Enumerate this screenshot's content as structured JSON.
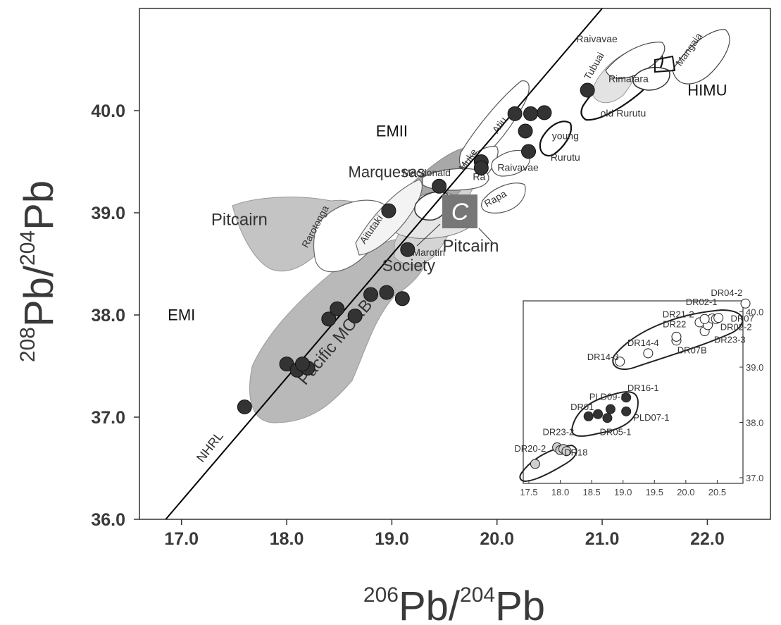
{
  "chart_data": [
    {
      "type": "scatter",
      "title": "",
      "xlabel": {
        "sup1": "206",
        "base1": "Pb/",
        "sup2": "204",
        "base2": "Pb"
      },
      "ylabel": {
        "sup1": "208",
        "base1": "Pb/",
        "sup2": "204",
        "base2": "Pb"
      },
      "xlim": [
        16.6,
        22.6
      ],
      "ylim": [
        36.0,
        41.0
      ],
      "xticks": [
        "17.0",
        "18.0",
        "19.0",
        "20.0",
        "21.0",
        "22.0"
      ],
      "yticks": [
        "36.0",
        "37.0",
        "38.0",
        "39.0",
        "40.0"
      ],
      "reference_line": {
        "label": "NHRL",
        "from": [
          16.85,
          36.0
        ],
        "to": [
          21.0,
          41.0
        ]
      },
      "end_members": [
        {
          "label": "EMII",
          "x": 19.0,
          "y": 39.75
        },
        {
          "label": "EMI",
          "x": 17.0,
          "y": 37.95
        },
        {
          "label": "HIMU",
          "x": 22.0,
          "y": 40.15
        }
      ],
      "field_labels": [
        {
          "label": "Pitcairn",
          "x": 17.55,
          "y": 38.88
        },
        {
          "label": "Marquesas",
          "x": 18.95,
          "y": 39.35
        },
        {
          "label": "Society",
          "x": 19.16,
          "y": 38.43
        },
        {
          "label": "Pitcairn",
          "x": 19.75,
          "y": 38.62
        },
        {
          "label": "Pacific MORB",
          "x": 18.5,
          "y": 37.7
        },
        {
          "label": "Rarotonga",
          "x": 18.3,
          "y": 38.85
        },
        {
          "label": "Aitutaki",
          "x": 18.83,
          "y": 38.82
        },
        {
          "label": "Atiu",
          "x": 20.05,
          "y": 39.84
        },
        {
          "label": "Muke",
          "x": 19.75,
          "y": 39.5
        },
        {
          "label": "Macdonald",
          "x": 19.33,
          "y": 39.36
        },
        {
          "label": "Ra",
          "x": 19.83,
          "y": 39.32
        },
        {
          "label": "Rapa",
          "x": 20.0,
          "y": 39.11
        },
        {
          "label": "Raivavae",
          "x": 20.2,
          "y": 39.41
        },
        {
          "label": "Marotiri",
          "x": 19.35,
          "y": 38.58
        },
        {
          "label": "young",
          "x": 20.65,
          "y": 39.72
        },
        {
          "label": "Rurutu",
          "x": 20.65,
          "y": 39.51
        },
        {
          "label": "old Rurutu",
          "x": 21.2,
          "y": 39.94
        },
        {
          "label": "Tubuai",
          "x": 20.95,
          "y": 40.42
        },
        {
          "label": "Raivavae",
          "x": 20.95,
          "y": 40.67
        },
        {
          "label": "Rimatara",
          "x": 21.25,
          "y": 40.28
        },
        {
          "label": "Mangaia",
          "x": 21.85,
          "y": 40.58
        }
      ],
      "callout_label": "C",
      "series": [
        {
          "marker": "filled-circle",
          "points": [
            [
              17.6,
              37.1
            ],
            [
              18.0,
              37.52
            ],
            [
              18.1,
              37.46
            ],
            [
              18.2,
              37.48
            ],
            [
              18.15,
              37.52
            ],
            [
              18.4,
              37.96
            ],
            [
              18.48,
              38.06
            ],
            [
              18.65,
              37.99
            ],
            [
              18.8,
              38.2
            ],
            [
              18.95,
              38.22
            ],
            [
              19.1,
              38.16
            ],
            [
              18.97,
              39.02
            ],
            [
              19.15,
              38.64
            ],
            [
              19.45,
              39.26
            ],
            [
              19.85,
              39.5
            ],
            [
              19.85,
              39.44
            ],
            [
              20.17,
              39.97
            ],
            [
              20.27,
              39.8
            ],
            [
              20.3,
              39.6
            ],
            [
              20.32,
              39.97
            ],
            [
              20.45,
              39.98
            ],
            [
              20.86,
              40.2
            ]
          ]
        }
      ]
    },
    {
      "type": "scatter",
      "title": "",
      "xlim": [
        17.5,
        21.0
      ],
      "ylim": [
        37.0,
        40.3
      ],
      "xticks": [
        "17.5",
        "18.0",
        "18.5",
        "19.0",
        "19.5",
        "20.0",
        "20.5"
      ],
      "yticks": [
        "37.0",
        "38.0",
        "39.0",
        "40.0"
      ],
      "series": [
        {
          "marker": "filled-circle",
          "points": [
            [
              18.45,
              38.11
            ],
            [
              18.6,
              38.15
            ],
            [
              18.75,
              38.08
            ],
            [
              18.8,
              38.24
            ],
            [
              19.05,
              38.45
            ],
            [
              19.05,
              38.2
            ]
          ]
        },
        {
          "marker": "grey-circle",
          "points": [
            [
              17.6,
              37.25
            ],
            [
              17.95,
              37.55
            ],
            [
              18.0,
              37.5
            ],
            [
              18.05,
              37.52
            ],
            [
              18.1,
              37.48
            ]
          ]
        },
        {
          "marker": "open-circle",
          "points": [
            [
              18.95,
              39.1
            ],
            [
              19.4,
              39.25
            ],
            [
              19.85,
              39.48
            ],
            [
              19.85,
              39.55
            ],
            [
              20.22,
              39.81
            ],
            [
              20.3,
              39.65
            ],
            [
              20.35,
              39.76
            ],
            [
              20.42,
              39.88
            ],
            [
              20.3,
              39.87
            ],
            [
              20.48,
              39.87
            ],
            [
              20.52,
              39.89
            ],
            [
              20.95,
              40.15
            ]
          ]
        }
      ],
      "labels": [
        {
          "label": "DR04-2",
          "x": 20.65,
          "y": 40.29
        },
        {
          "label": "DR02-1",
          "x": 20.25,
          "y": 40.12
        },
        {
          "label": "DR21-2",
          "x": 19.88,
          "y": 39.9
        },
        {
          "label": "DR07",
          "x": 20.9,
          "y": 39.82
        },
        {
          "label": "DR22",
          "x": 19.82,
          "y": 39.72
        },
        {
          "label": "DR02-2",
          "x": 20.8,
          "y": 39.67
        },
        {
          "label": "DR14-4",
          "x": 19.32,
          "y": 39.38
        },
        {
          "label": "DR23-3",
          "x": 20.7,
          "y": 39.44
        },
        {
          "label": "DR07B",
          "x": 20.1,
          "y": 39.25
        },
        {
          "label": "DR14-3",
          "x": 18.68,
          "y": 39.13
        },
        {
          "label": "DR16-1",
          "x": 19.32,
          "y": 38.57
        },
        {
          "label": "PLD09-1",
          "x": 18.75,
          "y": 38.41
        },
        {
          "label": "DR01",
          "x": 18.35,
          "y": 38.22
        },
        {
          "label": "PLD07-1",
          "x": 19.45,
          "y": 38.03
        },
        {
          "label": "DR05-1",
          "x": 18.88,
          "y": 37.77
        },
        {
          "label": "DR23-2",
          "x": 17.97,
          "y": 37.77
        },
        {
          "label": "DR20-2",
          "x": 17.52,
          "y": 37.47
        },
        {
          "label": "DR18",
          "x": 18.25,
          "y": 37.4
        }
      ]
    }
  ]
}
